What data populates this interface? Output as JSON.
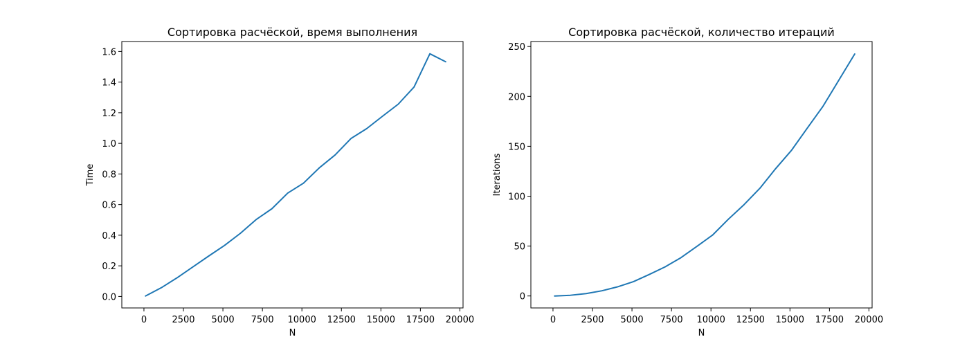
{
  "chart_data": [
    {
      "type": "line",
      "title": "Сортировка расчёской, время выполнения",
      "xlabel": "N",
      "ylabel": "Time",
      "xlim": [
        -1400,
        20200
      ],
      "ylim": [
        -0.075,
        1.665
      ],
      "xticks": [
        0,
        2500,
        5000,
        7500,
        10000,
        12500,
        15000,
        17500,
        20000
      ],
      "xtick_labels": [
        "0",
        "2500",
        "5000",
        "7500",
        "10000",
        "12500",
        "15000",
        "17500",
        "20000"
      ],
      "yticks": [
        0.0,
        0.2,
        0.4,
        0.6,
        0.8,
        1.0,
        1.2,
        1.4,
        1.6
      ],
      "ytick_labels": [
        "0.0",
        "0.2",
        "0.4",
        "0.6",
        "0.8",
        "1.0",
        "1.2",
        "1.4",
        "1.6"
      ],
      "grid": false,
      "series": [
        {
          "color": "#1f77b4",
          "x": [
            100,
            1100,
            2100,
            3100,
            4100,
            5100,
            6100,
            7100,
            8100,
            9100,
            10100,
            11100,
            12100,
            13100,
            14100,
            15100,
            16100,
            17100,
            18100,
            19100
          ],
          "y": [
            0.003,
            0.057,
            0.122,
            0.193,
            0.264,
            0.333,
            0.412,
            0.502,
            0.573,
            0.675,
            0.74,
            0.84,
            0.924,
            1.031,
            1.096,
            1.177,
            1.256,
            1.368,
            1.585,
            1.533
          ]
        }
      ]
    },
    {
      "type": "line",
      "title": "Сортировка расчёской, количество итераций",
      "xlabel": "N",
      "ylabel": "Iterations",
      "xlim": [
        -1400,
        20200
      ],
      "ylim": [
        -12,
        255
      ],
      "xticks": [
        0,
        2500,
        5000,
        7500,
        10000,
        12500,
        15000,
        17500,
        20000
      ],
      "xtick_labels": [
        "0",
        "2500",
        "5000",
        "7500",
        "10000",
        "12500",
        "15000",
        "17500",
        "20000"
      ],
      "yticks": [
        0,
        50,
        100,
        150,
        200,
        250
      ],
      "ytick_labels": [
        "0",
        "50",
        "100",
        "150",
        "200",
        "250"
      ],
      "grid": false,
      "series": [
        {
          "color": "#1f77b4",
          "x": [
            100,
            1100,
            2100,
            3100,
            4100,
            5100,
            6100,
            7100,
            8100,
            9100,
            10100,
            11100,
            12100,
            13100,
            14100,
            15100,
            16100,
            17100,
            18100,
            19100
          ],
          "y": [
            0.0,
            0.7,
            2.4,
            5.2,
            9.2,
            14.4,
            21.6,
            29.2,
            38.4,
            49.6,
            61.0,
            76.9,
            91.6,
            108.0,
            127.7,
            146.0,
            168.3,
            190.3,
            216.4,
            242.5
          ]
        }
      ]
    }
  ]
}
